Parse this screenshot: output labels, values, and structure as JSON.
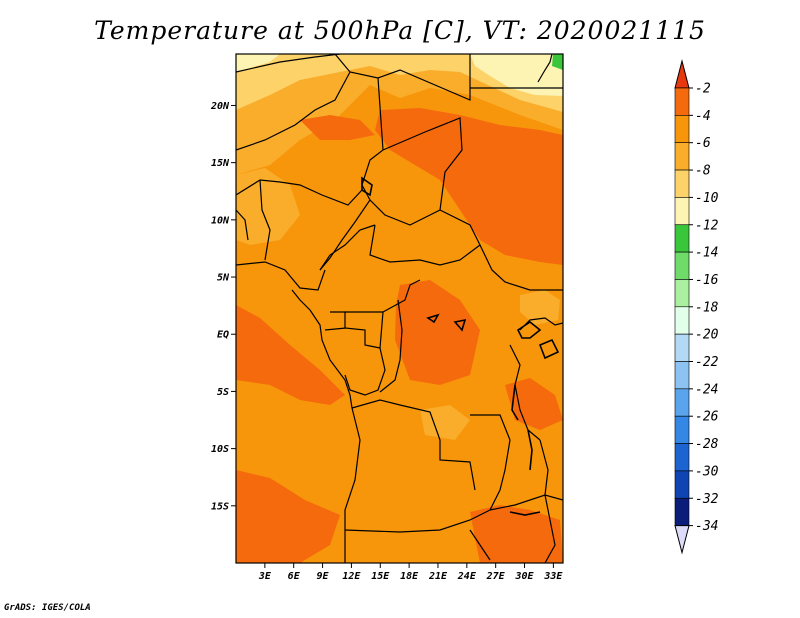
{
  "title": "Temperature at 500hPa [C], VT: 2020021115",
  "footer": "GrADS: IGES/COLA",
  "map": {
    "lat_range": [
      -20,
      24.5
    ],
    "lon_range": [
      0,
      34
    ],
    "lat_ticks": [
      {
        "value": 20,
        "label": "20N"
      },
      {
        "value": 15,
        "label": "15N"
      },
      {
        "value": 10,
        "label": "10N"
      },
      {
        "value": 5,
        "label": "5N"
      },
      {
        "value": 0,
        "label": "EQ"
      },
      {
        "value": -5,
        "label": "5S"
      },
      {
        "value": -10,
        "label": "10S"
      },
      {
        "value": -15,
        "label": "15S"
      }
    ],
    "lon_ticks": [
      {
        "value": 3,
        "label": "3E"
      },
      {
        "value": 6,
        "label": "6E"
      },
      {
        "value": 9,
        "label": "9E"
      },
      {
        "value": 12,
        "label": "12E"
      },
      {
        "value": 15,
        "label": "15E"
      },
      {
        "value": 18,
        "label": "18E"
      },
      {
        "value": 21,
        "label": "21E"
      },
      {
        "value": 24,
        "label": "24E"
      },
      {
        "value": 27,
        "label": "27E"
      },
      {
        "value": 30,
        "label": "30E"
      },
      {
        "value": 33,
        "label": "33E"
      }
    ]
  },
  "colorbar": {
    "levels": [
      "-2",
      "-4",
      "-6",
      "-8",
      "-10",
      "-12",
      "-14",
      "-16",
      "-18",
      "-20",
      "-22",
      "-24",
      "-26",
      "-28",
      "-30",
      "-32",
      "-34"
    ],
    "colors": [
      "#e8380f",
      "#f56a0c",
      "#f7960a",
      "#f9ad2a",
      "#fcd269",
      "#fdf4b4",
      "#3ac63a",
      "#6fdc6a",
      "#aaf0a0",
      "#e1ffe9",
      "#b2d9f6",
      "#8cc3f2",
      "#5aa4ee",
      "#3587e6",
      "#1c64d1",
      "#0f45b2",
      "#0a1d78",
      "#dcdcfa"
    ]
  },
  "colors": {
    "temp_minus2_to_minus4": "#f56a0c",
    "temp_minus4_to_minus6": "#f7960a",
    "temp_minus6_to_minus8": "#f9ad2a",
    "temp_minus8_to_minus10": "#fcd269",
    "temp_minus10_to_minus12": "#fdf4b4",
    "temp_minus12_to_minus14": "#3ac63a"
  }
}
